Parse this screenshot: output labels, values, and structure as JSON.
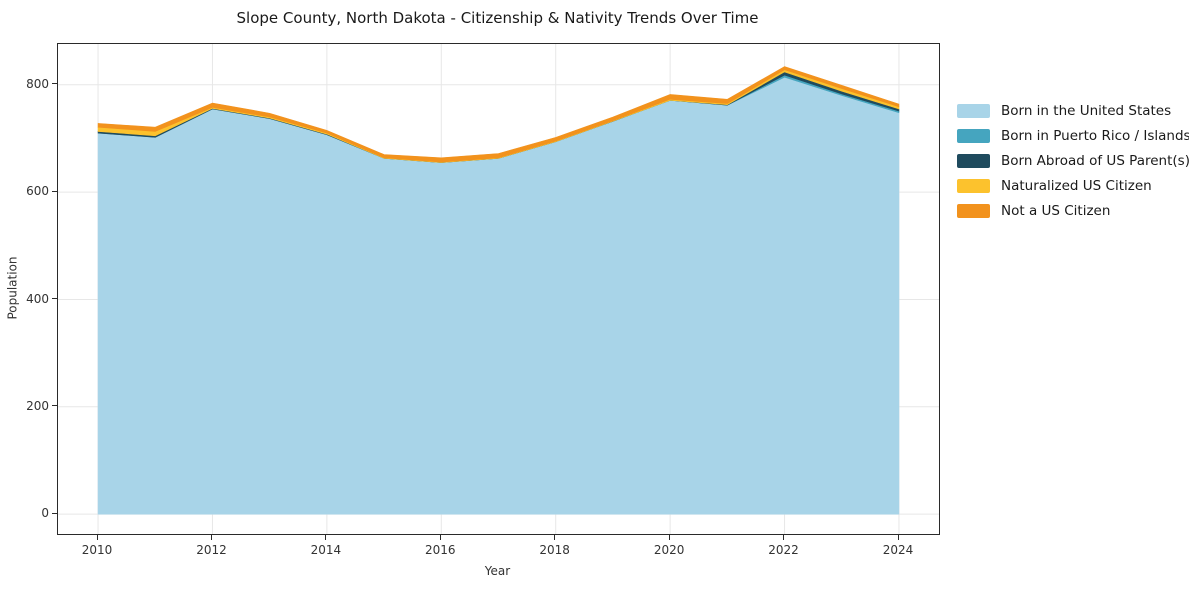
{
  "title": "Slope County, North Dakota - Citizenship & Nativity Trends Over Time",
  "chart_data": {
    "type": "area",
    "stacked": true,
    "title": "Slope County, North Dakota - Citizenship & Nativity Trends Over Time",
    "xlabel": "Year",
    "ylabel": "Population",
    "grid": true,
    "legend_position": "right-outside",
    "background": "#ffffff",
    "gridline_color": "#e7e7e7",
    "spine_color": "#2a2a2a",
    "xlim": [
      2009.3,
      2024.7
    ],
    "ylim": [
      -37,
      876
    ],
    "xticks": [
      2010,
      2012,
      2014,
      2016,
      2018,
      2020,
      2022,
      2024
    ],
    "yticks": [
      0,
      200,
      400,
      600,
      800
    ],
    "x": [
      2010,
      2011,
      2012,
      2013,
      2014,
      2015,
      2016,
      2017,
      2018,
      2019,
      2020,
      2021,
      2022,
      2023,
      2024
    ],
    "series": [
      {
        "name": "Born in the United States",
        "color": "#a8d4e8",
        "values": [
          710,
          702,
          755,
          737,
          707,
          663,
          655,
          663,
          694,
          732,
          771,
          762,
          814,
          780,
          748
        ]
      },
      {
        "name": "Born in Puerto Rico / Islands",
        "color": "#45a5bf",
        "values": [
          0,
          0,
          0,
          0,
          0,
          0,
          0,
          0,
          0,
          0,
          0,
          0,
          4,
          3,
          3
        ]
      },
      {
        "name": "Born Abroad of US Parent(s)",
        "color": "#1f4b5e",
        "values": [
          3,
          3,
          1,
          1,
          1,
          0,
          0,
          0,
          0,
          0,
          0,
          1,
          6,
          5,
          4
        ]
      },
      {
        "name": "Naturalized US Citizen",
        "color": "#fcc22d",
        "values": [
          8,
          8,
          2,
          2,
          2,
          1,
          1,
          1,
          1,
          1,
          2,
          2,
          4,
          5,
          4
        ]
      },
      {
        "name": "Not a US Citizen",
        "color": "#f2921d",
        "values": [
          7,
          8,
          8,
          7,
          5,
          6,
          8,
          8,
          7,
          7,
          9,
          8,
          6,
          6,
          5
        ]
      }
    ],
    "totals": [
      728,
      721,
      766,
      747,
      715,
      670,
      664,
      672,
      702,
      740,
      782,
      773,
      834,
      799,
      764
    ]
  }
}
